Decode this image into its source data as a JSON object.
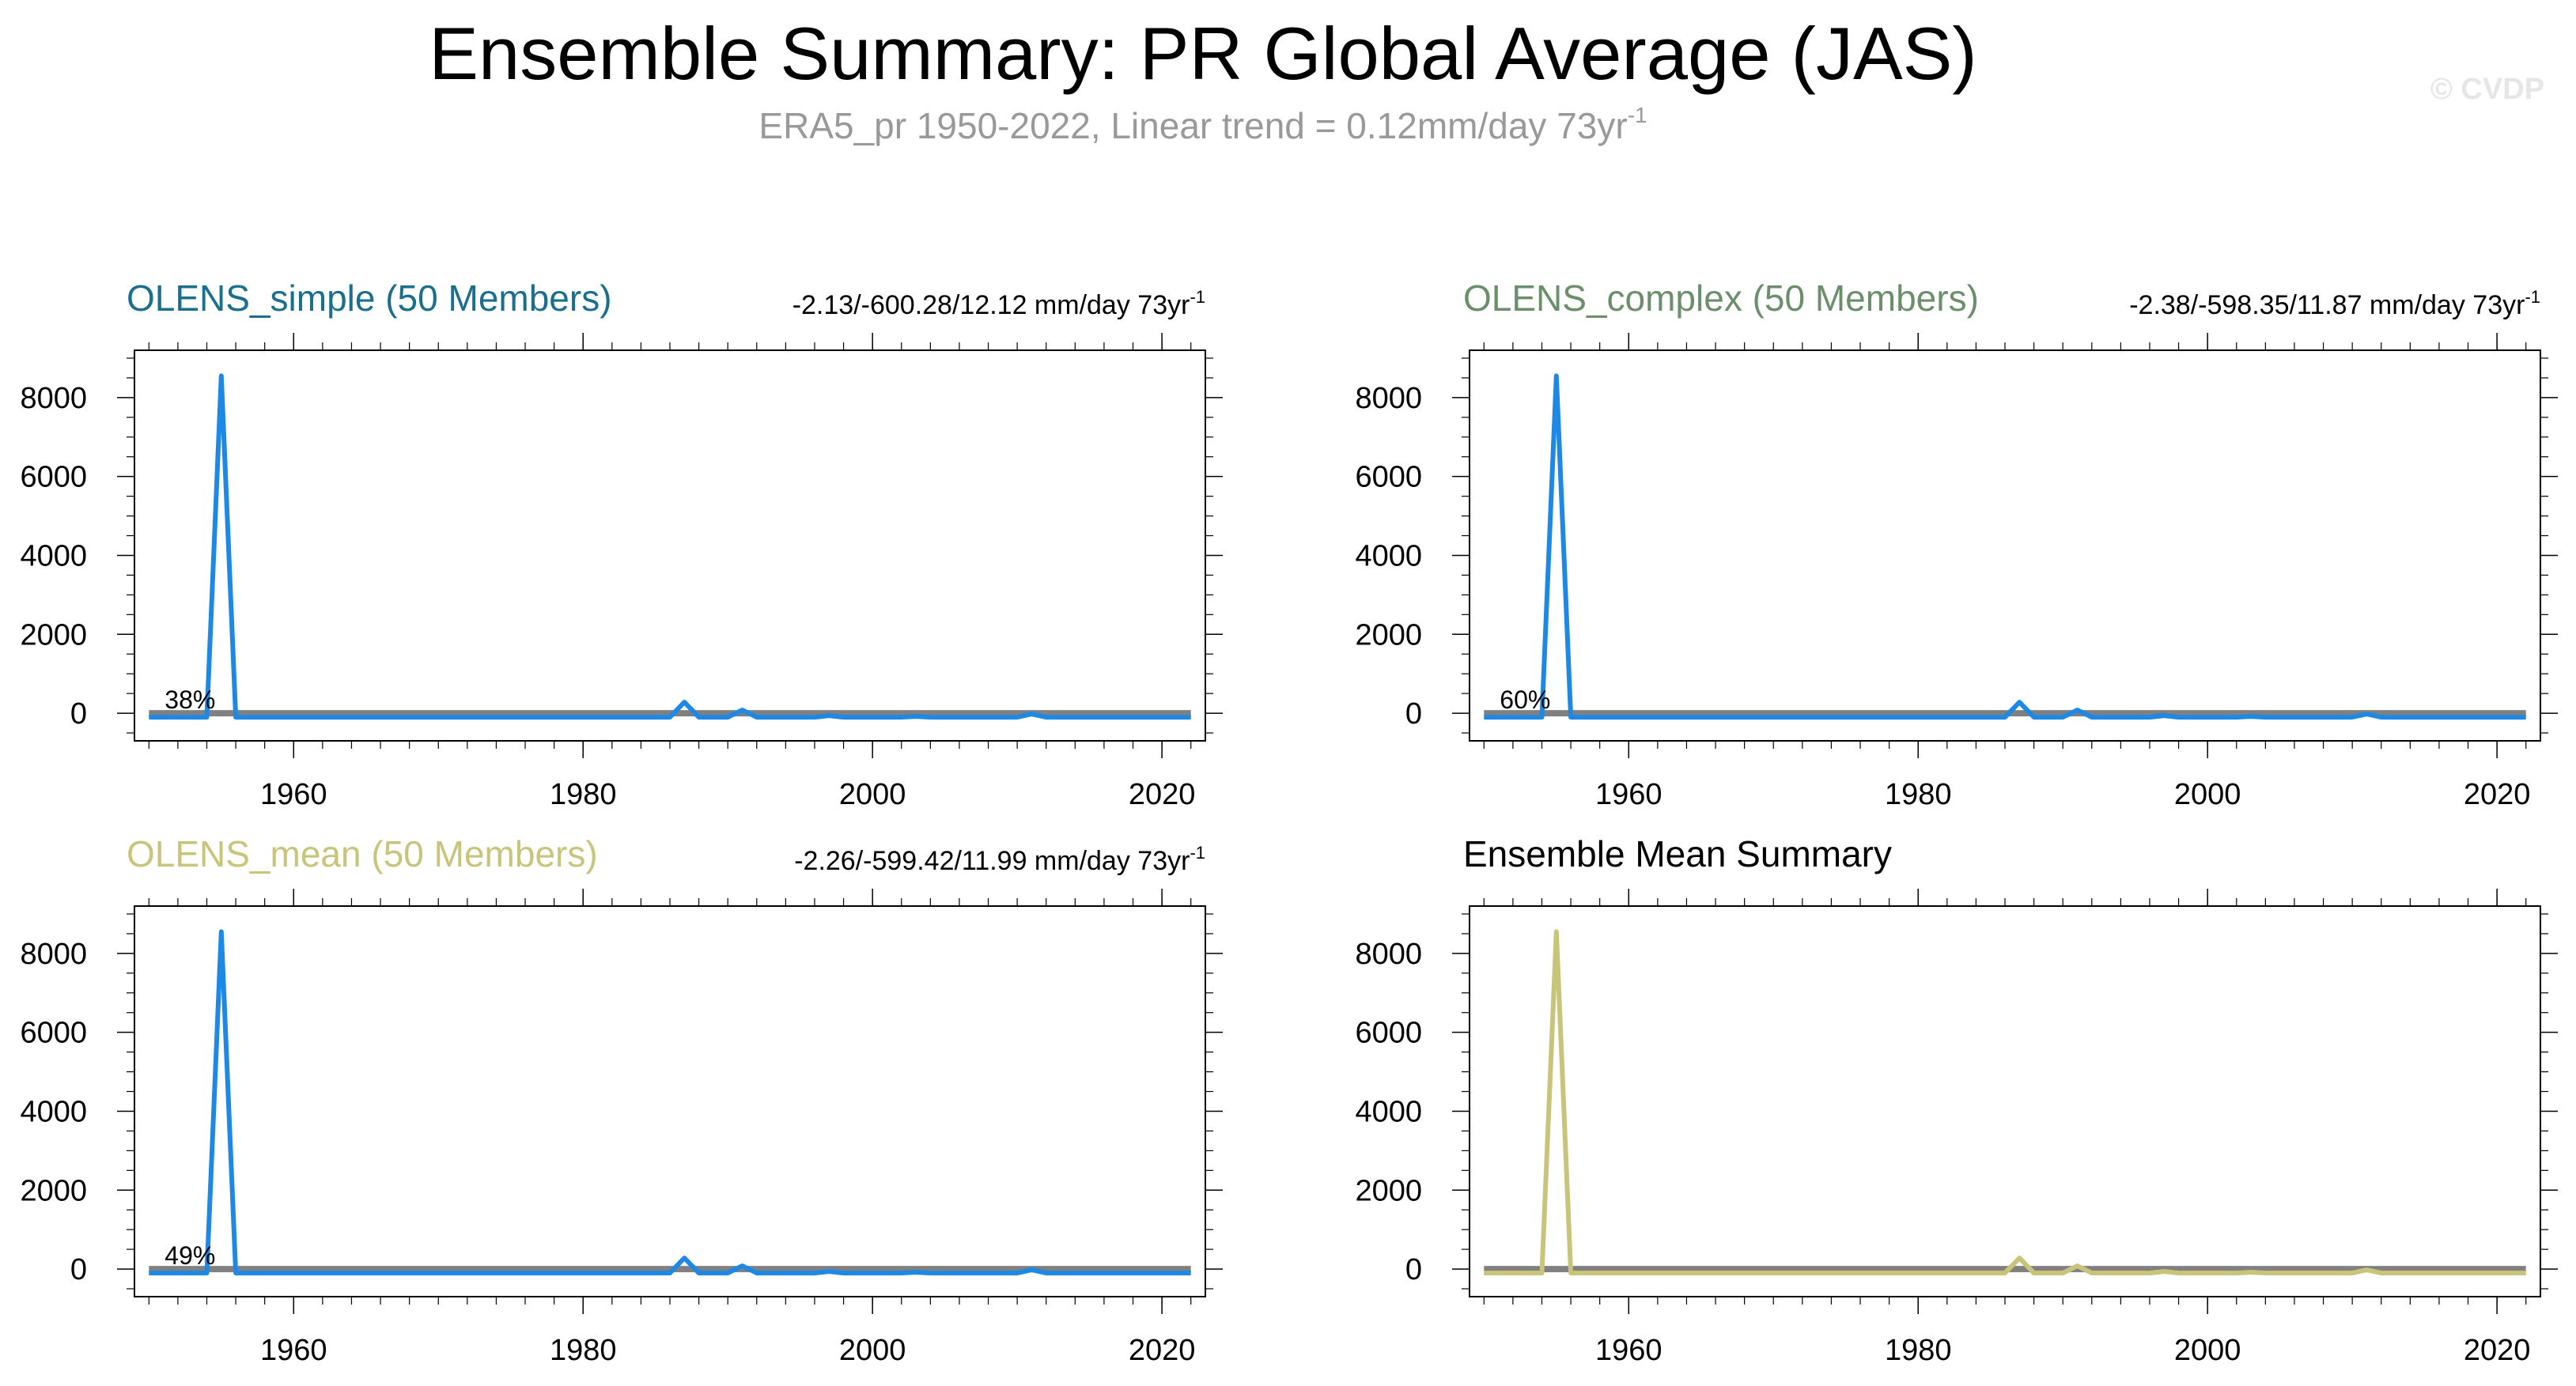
{
  "header": {
    "title": "Ensemble Summary: PR Global Average (JAS)",
    "subtitle": "ERA5_pr 1950-2022, Linear trend = 0.12mm/day 73yr",
    "subtitle_sup": "-1",
    "watermark": "© CVDP"
  },
  "colors": {
    "ensemble_line": "#1e88e5",
    "mean_line": "#c8c47a",
    "obs_line": "#808080",
    "olens_simple_title": "#1a6e8e",
    "olens_complex_title": "#6b8f6b",
    "olens_mean_title": "#c8c47a",
    "summary_title": "#000000"
  },
  "chart_data": [
    {
      "type": "line",
      "title": "OLENS_simple (50 Members)",
      "title_color": "#1a6e8e",
      "trend_label": "-2.13/-600.28/12.12 mm/day 73yr",
      "trend_sup": "-1",
      "percent_label": "38%",
      "line_color": "#1e88e5",
      "xlim": [
        1949,
        2023
      ],
      "ylim": [
        -700,
        9200
      ],
      "xticks": [
        1960,
        1980,
        2000,
        2020
      ],
      "yticks": [
        0,
        2000,
        4000,
        6000,
        8000
      ],
      "series": [
        {
          "x": [
            1950,
            2022
          ],
          "y": [
            0,
            0
          ],
          "color": "#808080"
        },
        {
          "x": [
            1950,
            1951,
            1952,
            1953,
            1954,
            1955,
            1956,
            1957,
            1958,
            1959,
            1960,
            1961,
            1962,
            1963,
            1964,
            1965,
            1966,
            1967,
            1968,
            1969,
            1970,
            1971,
            1972,
            1973,
            1974,
            1975,
            1976,
            1977,
            1978,
            1979,
            1980,
            1981,
            1982,
            1983,
            1984,
            1985,
            1986,
            1987,
            1988,
            1989,
            1990,
            1991,
            1992,
            1993,
            1994,
            1995,
            1996,
            1997,
            1998,
            1999,
            2000,
            2001,
            2002,
            2003,
            2004,
            2005,
            2006,
            2007,
            2008,
            2009,
            2010,
            2011,
            2012,
            2013,
            2014,
            2015,
            2016,
            2017,
            2018,
            2019,
            2020,
            2021,
            2022
          ],
          "y": [
            -100,
            -100,
            -100,
            -100,
            -100,
            8550,
            -100,
            -100,
            -100,
            -100,
            -100,
            -100,
            -100,
            -100,
            -100,
            -100,
            -100,
            -100,
            -100,
            -100,
            -100,
            -100,
            -100,
            -100,
            -100,
            -100,
            -100,
            -100,
            -100,
            -100,
            -100,
            -100,
            -100,
            -100,
            -100,
            -100,
            -100,
            280,
            -100,
            -100,
            -100,
            80,
            -100,
            -100,
            -100,
            -100,
            -100,
            -60,
            -100,
            -100,
            -100,
            -100,
            -100,
            -80,
            -100,
            -100,
            -100,
            -100,
            -100,
            -100,
            -100,
            -20,
            -100,
            -100,
            -100,
            -100,
            -100,
            -100,
            -100,
            -100,
            -100,
            -100,
            -100
          ],
          "color": "#1e88e5"
        }
      ]
    },
    {
      "type": "line",
      "title": "OLENS_complex (50 Members)",
      "title_color": "#6b8f6b",
      "trend_label": "-2.38/-598.35/11.87 mm/day 73yr",
      "trend_sup": "-1",
      "percent_label": "60%",
      "line_color": "#1e88e5",
      "xlim": [
        1949,
        2023
      ],
      "ylim": [
        -700,
        9200
      ],
      "xticks": [
        1960,
        1980,
        2000,
        2020
      ],
      "yticks": [
        0,
        2000,
        4000,
        6000,
        8000
      ],
      "series": [
        {
          "x": [
            1950,
            2022
          ],
          "y": [
            0,
            0
          ],
          "color": "#808080"
        },
        {
          "x": [
            1950,
            1951,
            1952,
            1953,
            1954,
            1955,
            1956,
            1957,
            1958,
            1959,
            1960,
            1961,
            1962,
            1963,
            1964,
            1965,
            1966,
            1967,
            1968,
            1969,
            1970,
            1971,
            1972,
            1973,
            1974,
            1975,
            1976,
            1977,
            1978,
            1979,
            1980,
            1981,
            1982,
            1983,
            1984,
            1985,
            1986,
            1987,
            1988,
            1989,
            1990,
            1991,
            1992,
            1993,
            1994,
            1995,
            1996,
            1997,
            1998,
            1999,
            2000,
            2001,
            2002,
            2003,
            2004,
            2005,
            2006,
            2007,
            2008,
            2009,
            2010,
            2011,
            2012,
            2013,
            2014,
            2015,
            2016,
            2017,
            2018,
            2019,
            2020,
            2021,
            2022
          ],
          "y": [
            -100,
            -100,
            -100,
            -100,
            -100,
            8550,
            -100,
            -100,
            -100,
            -100,
            -100,
            -100,
            -100,
            -100,
            -100,
            -100,
            -100,
            -100,
            -100,
            -100,
            -100,
            -100,
            -100,
            -100,
            -100,
            -100,
            -100,
            -100,
            -100,
            -100,
            -100,
            -100,
            -100,
            -100,
            -100,
            -100,
            -100,
            280,
            -100,
            -100,
            -100,
            80,
            -100,
            -100,
            -100,
            -100,
            -100,
            -60,
            -100,
            -100,
            -100,
            -100,
            -100,
            -80,
            -100,
            -100,
            -100,
            -100,
            -100,
            -100,
            -100,
            -20,
            -100,
            -100,
            -100,
            -100,
            -100,
            -100,
            -100,
            -100,
            -100,
            -100,
            -100
          ],
          "color": "#1e88e5"
        }
      ]
    },
    {
      "type": "line",
      "title": "OLENS_mean (50 Members)",
      "title_color": "#c8c47a",
      "trend_label": "-2.26/-599.42/11.99 mm/day 73yr",
      "trend_sup": "-1",
      "percent_label": "49%",
      "line_color": "#1e88e5",
      "xlim": [
        1949,
        2023
      ],
      "ylim": [
        -700,
        9200
      ],
      "xticks": [
        1960,
        1980,
        2000,
        2020
      ],
      "yticks": [
        0,
        2000,
        4000,
        6000,
        8000
      ],
      "series": [
        {
          "x": [
            1950,
            2022
          ],
          "y": [
            0,
            0
          ],
          "color": "#808080"
        },
        {
          "x": [
            1950,
            1951,
            1952,
            1953,
            1954,
            1955,
            1956,
            1957,
            1958,
            1959,
            1960,
            1961,
            1962,
            1963,
            1964,
            1965,
            1966,
            1967,
            1968,
            1969,
            1970,
            1971,
            1972,
            1973,
            1974,
            1975,
            1976,
            1977,
            1978,
            1979,
            1980,
            1981,
            1982,
            1983,
            1984,
            1985,
            1986,
            1987,
            1988,
            1989,
            1990,
            1991,
            1992,
            1993,
            1994,
            1995,
            1996,
            1997,
            1998,
            1999,
            2000,
            2001,
            2002,
            2003,
            2004,
            2005,
            2006,
            2007,
            2008,
            2009,
            2010,
            2011,
            2012,
            2013,
            2014,
            2015,
            2016,
            2017,
            2018,
            2019,
            2020,
            2021,
            2022
          ],
          "y": [
            -100,
            -100,
            -100,
            -100,
            -100,
            8550,
            -100,
            -100,
            -100,
            -100,
            -100,
            -100,
            -100,
            -100,
            -100,
            -100,
            -100,
            -100,
            -100,
            -100,
            -100,
            -100,
            -100,
            -100,
            -100,
            -100,
            -100,
            -100,
            -100,
            -100,
            -100,
            -100,
            -100,
            -100,
            -100,
            -100,
            -100,
            280,
            -100,
            -100,
            -100,
            80,
            -100,
            -100,
            -100,
            -100,
            -100,
            -60,
            -100,
            -100,
            -100,
            -100,
            -100,
            -80,
            -100,
            -100,
            -100,
            -100,
            -100,
            -100,
            -100,
            -20,
            -100,
            -100,
            -100,
            -100,
            -100,
            -100,
            -100,
            -100,
            -100,
            -100,
            -100
          ],
          "color": "#1e88e5"
        }
      ]
    },
    {
      "type": "line",
      "title": "Ensemble Mean Summary",
      "title_color": "#000000",
      "trend_label": "",
      "trend_sup": "",
      "percent_label": "",
      "line_color": "#c8c47a",
      "xlim": [
        1949,
        2023
      ],
      "ylim": [
        -700,
        9200
      ],
      "xticks": [
        1960,
        1980,
        2000,
        2020
      ],
      "yticks": [
        0,
        2000,
        4000,
        6000,
        8000
      ],
      "series": [
        {
          "x": [
            1950,
            2022
          ],
          "y": [
            0,
            0
          ],
          "color": "#808080"
        },
        {
          "x": [
            1950,
            1951,
            1952,
            1953,
            1954,
            1955,
            1956,
            1957,
            1958,
            1959,
            1960,
            1961,
            1962,
            1963,
            1964,
            1965,
            1966,
            1967,
            1968,
            1969,
            1970,
            1971,
            1972,
            1973,
            1974,
            1975,
            1976,
            1977,
            1978,
            1979,
            1980,
            1981,
            1982,
            1983,
            1984,
            1985,
            1986,
            1987,
            1988,
            1989,
            1990,
            1991,
            1992,
            1993,
            1994,
            1995,
            1996,
            1997,
            1998,
            1999,
            2000,
            2001,
            2002,
            2003,
            2004,
            2005,
            2006,
            2007,
            2008,
            2009,
            2010,
            2011,
            2012,
            2013,
            2014,
            2015,
            2016,
            2017,
            2018,
            2019,
            2020,
            2021,
            2022
          ],
          "y": [
            -100,
            -100,
            -100,
            -100,
            -100,
            8550,
            -100,
            -100,
            -100,
            -100,
            -100,
            -100,
            -100,
            -100,
            -100,
            -100,
            -100,
            -100,
            -100,
            -100,
            -100,
            -100,
            -100,
            -100,
            -100,
            -100,
            -100,
            -100,
            -100,
            -100,
            -100,
            -100,
            -100,
            -100,
            -100,
            -100,
            -100,
            280,
            -100,
            -100,
            -100,
            80,
            -100,
            -100,
            -100,
            -100,
            -100,
            -60,
            -100,
            -100,
            -100,
            -100,
            -100,
            -80,
            -100,
            -100,
            -100,
            -100,
            -100,
            -100,
            -100,
            -20,
            -100,
            -100,
            -100,
            -100,
            -100,
            -100,
            -100,
            -100,
            -100,
            -100,
            -100
          ],
          "color": "#c8c47a"
        }
      ]
    }
  ]
}
